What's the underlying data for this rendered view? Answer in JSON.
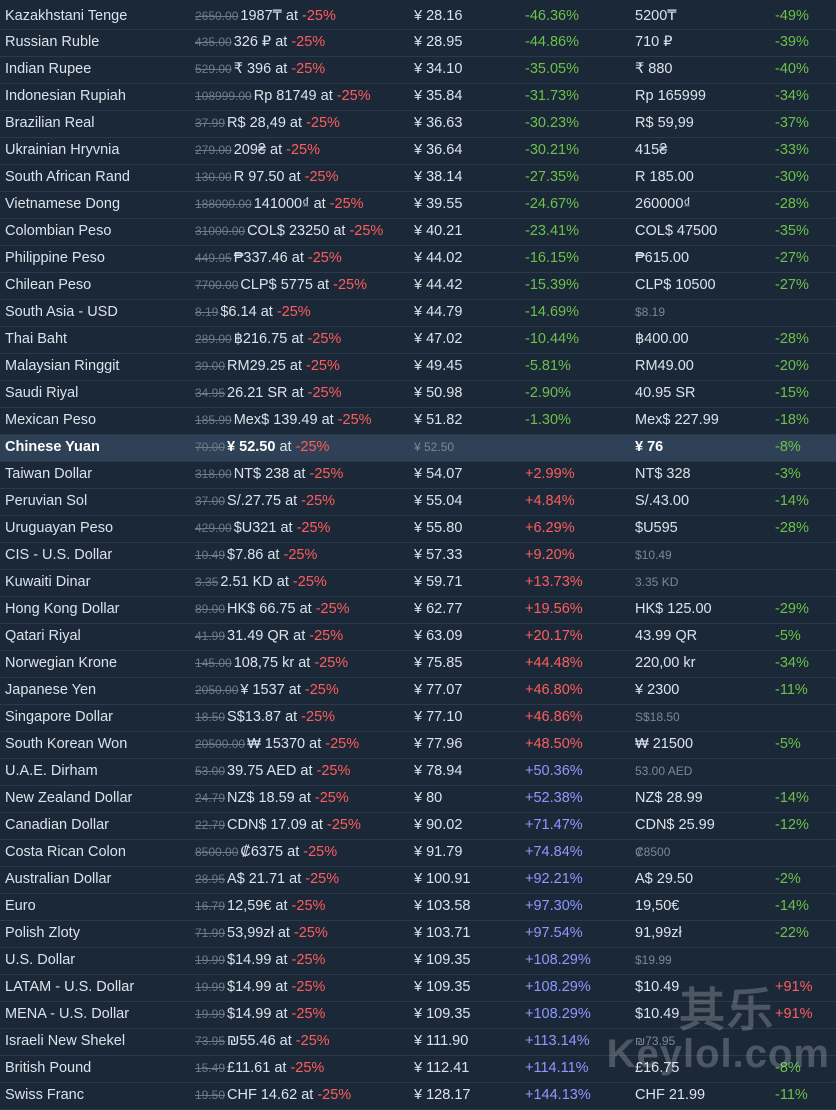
{
  "colors": {
    "background": "#1b2838",
    "highlight_row": "#2f4156",
    "discount_red": "#ff5d5d",
    "cheaper_green": "#6cc14a",
    "pricier_red": "#ff5d5d",
    "much_pricier_blue": "#8f98ff"
  },
  "watermark": {
    "chinese": "其乐",
    "site": "Keylol.com"
  },
  "rows": [
    {
      "region": "Kazakhstani Tenge",
      "orig": "2650.00",
      "np": "1987₸",
      "disc": "-25%",
      "conv": "¥ 28.16",
      "diff": "-46.36%",
      "diff_type": "neg",
      "lp": "5200₸",
      "ld": "-49%",
      "ld_type": "neg"
    },
    {
      "region": "Russian Ruble",
      "orig": "435.00",
      "np": "326 ₽",
      "disc": "-25%",
      "conv": "¥ 28.95",
      "diff": "-44.86%",
      "diff_type": "neg",
      "lp": "710 ₽",
      "ld": "-39%",
      "ld_type": "neg"
    },
    {
      "region": "Indian Rupee",
      "orig": "529.00",
      "np": "₹ 396",
      "disc": "-25%",
      "conv": "¥ 34.10",
      "diff": "-35.05%",
      "diff_type": "neg",
      "lp": "₹ 880",
      "ld": "-40%",
      "ld_type": "neg"
    },
    {
      "region": "Indonesian Rupiah",
      "orig": "108999.00",
      "np": "Rp 81749",
      "disc": "-25%",
      "conv": "¥ 35.84",
      "diff": "-31.73%",
      "diff_type": "neg",
      "lp": "Rp 165999",
      "ld": "-34%",
      "ld_type": "neg"
    },
    {
      "region": "Brazilian Real",
      "orig": "37.99",
      "np": "R$ 28,49",
      "disc": "-25%",
      "conv": "¥ 36.63",
      "diff": "-30.23%",
      "diff_type": "neg",
      "lp": "R$ 59,99",
      "ld": "-37%",
      "ld_type": "neg"
    },
    {
      "region": "Ukrainian Hryvnia",
      "orig": "279.00",
      "np": "209₴",
      "disc": "-25%",
      "conv": "¥ 36.64",
      "diff": "-30.21%",
      "diff_type": "neg",
      "lp": "415₴",
      "ld": "-33%",
      "ld_type": "neg"
    },
    {
      "region": "South African Rand",
      "orig": "130.00",
      "np": "R 97.50",
      "disc": "-25%",
      "conv": "¥ 38.14",
      "diff": "-27.35%",
      "diff_type": "neg",
      "lp": "R 185.00",
      "ld": "-30%",
      "ld_type": "neg"
    },
    {
      "region": "Vietnamese Dong",
      "orig": "188000.00",
      "np": "141000₫",
      "disc": "-25%",
      "conv": "¥ 39.55",
      "diff": "-24.67%",
      "diff_type": "neg",
      "lp": "260000₫",
      "ld": "-28%",
      "ld_type": "neg"
    },
    {
      "region": "Colombian Peso",
      "orig": "31000.00",
      "np": "COL$ 23250",
      "disc": "-25%",
      "conv": "¥ 40.21",
      "diff": "-23.41%",
      "diff_type": "neg",
      "lp": "COL$ 47500",
      "ld": "-35%",
      "ld_type": "neg"
    },
    {
      "region": "Philippine Peso",
      "orig": "449.95",
      "np": "₱337.46",
      "disc": "-25%",
      "conv": "¥ 44.02",
      "diff": "-16.15%",
      "diff_type": "neg",
      "lp": "₱615.00",
      "ld": "-27%",
      "ld_type": "neg"
    },
    {
      "region": "Chilean Peso",
      "orig": "7700.00",
      "np": "CLP$ 5775",
      "disc": "-25%",
      "conv": "¥ 44.42",
      "diff": "-15.39%",
      "diff_type": "neg",
      "lp": "CLP$ 10500",
      "ld": "-27%",
      "ld_type": "neg"
    },
    {
      "region": "South Asia - USD",
      "orig": "8.19",
      "np": "$6.14",
      "disc": "-25%",
      "conv": "¥ 44.79",
      "diff": "-14.69%",
      "diff_type": "neg",
      "lp": "$8.19",
      "lp_dim": true,
      "ld": "",
      "ld_type": "neg"
    },
    {
      "region": "Thai Baht",
      "orig": "289.00",
      "np": "฿216.75",
      "disc": "-25%",
      "conv": "¥ 47.02",
      "diff": "-10.44%",
      "diff_type": "neg",
      "lp": "฿400.00",
      "ld": "-28%",
      "ld_type": "neg"
    },
    {
      "region": "Malaysian Ringgit",
      "orig": "39.00",
      "np": "RM29.25",
      "disc": "-25%",
      "conv": "¥ 49.45",
      "diff": "-5.81%",
      "diff_type": "neg",
      "lp": "RM49.00",
      "ld": "-20%",
      "ld_type": "neg"
    },
    {
      "region": "Saudi Riyal",
      "orig": "34.95",
      "np": "26.21 SR",
      "disc": "-25%",
      "conv": "¥ 50.98",
      "diff": "-2.90%",
      "diff_type": "neg",
      "lp": "40.95 SR",
      "ld": "-15%",
      "ld_type": "neg"
    },
    {
      "region": "Mexican Peso",
      "orig": "185.99",
      "np": "Mex$ 139.49",
      "disc": "-25%",
      "conv": "¥ 51.82",
      "diff": "-1.30%",
      "diff_type": "neg",
      "lp": "Mex$ 227.99",
      "ld": "-18%",
      "ld_type": "neg"
    },
    {
      "region": "Chinese Yuan",
      "orig": "70.00",
      "np": "¥ 52.50",
      "disc": "-25%",
      "conv": "¥ 52.50",
      "conv_dim": true,
      "diff": "",
      "diff_type": "neg",
      "lp": "¥ 76",
      "ld": "-8%",
      "ld_type": "neg",
      "highlight": true
    },
    {
      "region": "Taiwan Dollar",
      "orig": "318.00",
      "np": "NT$ 238",
      "disc": "-25%",
      "conv": "¥ 54.07",
      "diff": "+2.99%",
      "diff_type": "pos1",
      "lp": "NT$ 328",
      "ld": "-3%",
      "ld_type": "neg"
    },
    {
      "region": "Peruvian Sol",
      "orig": "37.00",
      "np": "S/.27.75",
      "disc": "-25%",
      "conv": "¥ 55.04",
      "diff": "+4.84%",
      "diff_type": "pos1",
      "lp": "S/.43.00",
      "ld": "-14%",
      "ld_type": "neg"
    },
    {
      "region": "Uruguayan Peso",
      "orig": "429.00",
      "np": "$U321",
      "disc": "-25%",
      "conv": "¥ 55.80",
      "diff": "+6.29%",
      "diff_type": "pos1",
      "lp": "$U595",
      "ld": "-28%",
      "ld_type": "neg"
    },
    {
      "region": "CIS - U.S. Dollar",
      "orig": "10.49",
      "np": "$7.86",
      "disc": "-25%",
      "conv": "¥ 57.33",
      "diff": "+9.20%",
      "diff_type": "pos1",
      "lp": "$10.49",
      "lp_dim": true,
      "ld": "",
      "ld_type": "neg"
    },
    {
      "region": "Kuwaiti Dinar",
      "orig": "3.35",
      "np": "2.51 KD",
      "disc": "-25%",
      "conv": "¥ 59.71",
      "diff": "+13.73%",
      "diff_type": "pos1",
      "lp": "3.35 KD",
      "lp_dim": true,
      "ld": "",
      "ld_type": "neg"
    },
    {
      "region": "Hong Kong Dollar",
      "orig": "89.00",
      "np": "HK$ 66.75",
      "disc": "-25%",
      "conv": "¥ 62.77",
      "diff": "+19.56%",
      "diff_type": "pos1",
      "lp": "HK$ 125.00",
      "ld": "-29%",
      "ld_type": "neg"
    },
    {
      "region": "Qatari Riyal",
      "orig": "41.99",
      "np": "31.49 QR",
      "disc": "-25%",
      "conv": "¥ 63.09",
      "diff": "+20.17%",
      "diff_type": "pos1",
      "lp": "43.99 QR",
      "ld": "-5%",
      "ld_type": "neg"
    },
    {
      "region": "Norwegian Krone",
      "orig": "145.00",
      "np": "108,75 kr",
      "disc": "-25%",
      "conv": "¥ 75.85",
      "diff": "+44.48%",
      "diff_type": "pos1",
      "lp": "220,00 kr",
      "ld": "-34%",
      "ld_type": "neg"
    },
    {
      "region": "Japanese Yen",
      "orig": "2050.00",
      "np": "¥ 1537",
      "disc": "-25%",
      "conv": "¥ 77.07",
      "diff": "+46.80%",
      "diff_type": "pos1",
      "lp": "¥ 2300",
      "ld": "-11%",
      "ld_type": "neg"
    },
    {
      "region": "Singapore Dollar",
      "orig": "18.50",
      "np": "S$13.87",
      "disc": "-25%",
      "conv": "¥ 77.10",
      "diff": "+46.86%",
      "diff_type": "pos1",
      "lp": "S$18.50",
      "lp_dim": true,
      "ld": "",
      "ld_type": "neg"
    },
    {
      "region": "South Korean Won",
      "orig": "20500.00",
      "np": "₩ 15370",
      "disc": "-25%",
      "conv": "¥ 77.96",
      "diff": "+48.50%",
      "diff_type": "pos1",
      "lp": "₩ 21500",
      "ld": "-5%",
      "ld_type": "neg"
    },
    {
      "region": "U.A.E. Dirham",
      "orig": "53.00",
      "np": "39.75 AED",
      "disc": "-25%",
      "conv": "¥ 78.94",
      "diff": "+50.36%",
      "diff_type": "pos2",
      "lp": "53.00 AED",
      "lp_dim": true,
      "ld": "",
      "ld_type": "neg"
    },
    {
      "region": "New Zealand Dollar",
      "orig": "24.79",
      "np": "NZ$ 18.59",
      "disc": "-25%",
      "conv": "¥ 80",
      "diff": "+52.38%",
      "diff_type": "pos2",
      "lp": "NZ$ 28.99",
      "ld": "-14%",
      "ld_type": "neg"
    },
    {
      "region": "Canadian Dollar",
      "orig": "22.79",
      "np": "CDN$ 17.09",
      "disc": "-25%",
      "conv": "¥ 90.02",
      "diff": "+71.47%",
      "diff_type": "pos2",
      "lp": "CDN$ 25.99",
      "ld": "-12%",
      "ld_type": "neg"
    },
    {
      "region": "Costa Rican Colon",
      "orig": "8500.00",
      "np": "₡6375",
      "disc": "-25%",
      "conv": "¥ 91.79",
      "diff": "+74.84%",
      "diff_type": "pos2",
      "lp": "₡8500",
      "lp_dim": true,
      "ld": "",
      "ld_type": "neg"
    },
    {
      "region": "Australian Dollar",
      "orig": "28.95",
      "np": "A$ 21.71",
      "disc": "-25%",
      "conv": "¥ 100.91",
      "diff": "+92.21%",
      "diff_type": "pos2",
      "lp": "A$ 29.50",
      "ld": "-2%",
      "ld_type": "neg"
    },
    {
      "region": "Euro",
      "orig": "16.79",
      "np": "12,59€",
      "disc": "-25%",
      "conv": "¥ 103.58",
      "diff": "+97.30%",
      "diff_type": "pos2",
      "lp": "19,50€",
      "ld": "-14%",
      "ld_type": "neg"
    },
    {
      "region": "Polish Zloty",
      "orig": "71.99",
      "np": "53,99zł",
      "disc": "-25%",
      "conv": "¥ 103.71",
      "diff": "+97.54%",
      "diff_type": "pos2",
      "lp": "91,99zł",
      "ld": "-22%",
      "ld_type": "neg"
    },
    {
      "region": "U.S. Dollar",
      "orig": "19.99",
      "np": "$14.99",
      "disc": "-25%",
      "conv": "¥ 109.35",
      "diff": "+108.29%",
      "diff_type": "pos2",
      "lp": "$19.99",
      "lp_dim": true,
      "ld": "",
      "ld_type": "neg"
    },
    {
      "region": "LATAM - U.S. Dollar",
      "orig": "19.99",
      "np": "$14.99",
      "disc": "-25%",
      "conv": "¥ 109.35",
      "diff": "+108.29%",
      "diff_type": "pos2",
      "lp": "$10.49",
      "ld": "+91%",
      "ld_type": "pos"
    },
    {
      "region": "MENA - U.S. Dollar",
      "orig": "19.99",
      "np": "$14.99",
      "disc": "-25%",
      "conv": "¥ 109.35",
      "diff": "+108.29%",
      "diff_type": "pos2",
      "lp": "$10.49",
      "ld": "+91%",
      "ld_type": "pos"
    },
    {
      "region": "Israeli New Shekel",
      "orig": "73.95",
      "np": "₪55.46",
      "disc": "-25%",
      "conv": "¥ 111.90",
      "diff": "+113.14%",
      "diff_type": "pos2",
      "lp": "₪73.95",
      "lp_dim": true,
      "ld": "",
      "ld_type": "neg"
    },
    {
      "region": "British Pound",
      "orig": "15.49",
      "np": "£11.61",
      "disc": "-25%",
      "conv": "¥ 112.41",
      "diff": "+114.11%",
      "diff_type": "pos2",
      "lp": "£16.75",
      "ld": "-8%",
      "ld_type": "neg"
    },
    {
      "region": "Swiss Franc",
      "orig": "19.50",
      "np": "CHF 14.62",
      "disc": "-25%",
      "conv": "¥ 128.17",
      "diff": "+144.13%",
      "diff_type": "pos2",
      "lp": "CHF 21.99",
      "ld": "-11%",
      "ld_type": "neg"
    }
  ],
  "at_word": "at"
}
